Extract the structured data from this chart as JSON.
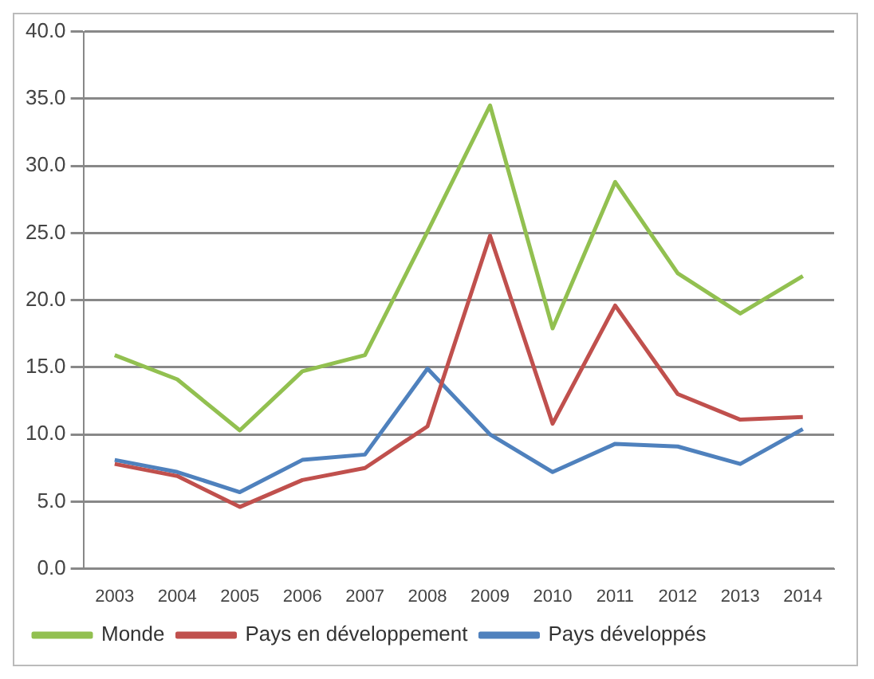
{
  "chart_data": {
    "type": "line",
    "categories": [
      "2003",
      "2004",
      "2005",
      "2006",
      "2007",
      "2008",
      "2009",
      "2010",
      "2011",
      "2012",
      "2013",
      "2014"
    ],
    "series": [
      {
        "name": "Monde",
        "color": "#92c050",
        "values": [
          15.9,
          14.1,
          10.3,
          14.7,
          15.9,
          25.1,
          34.5,
          17.9,
          28.8,
          22.0,
          19.0,
          21.8
        ]
      },
      {
        "name": "Pays en développement",
        "color": "#c0504d",
        "values": [
          7.8,
          6.9,
          4.6,
          6.6,
          7.5,
          10.6,
          24.8,
          10.8,
          19.6,
          13.0,
          11.1,
          11.3
        ]
      },
      {
        "name": "Pays développés",
        "color": "#4f81bd",
        "values": [
          8.1,
          7.2,
          5.7,
          8.1,
          8.5,
          14.9,
          10.0,
          7.2,
          9.3,
          9.1,
          7.8,
          10.4
        ]
      }
    ],
    "ylim": [
      0,
      40
    ],
    "yticks": [
      {
        "value": 0,
        "label": "0.0"
      },
      {
        "value": 5,
        "label": "5.0"
      },
      {
        "value": 10,
        "label": "10.0"
      },
      {
        "value": 15,
        "label": "15.0"
      },
      {
        "value": 20,
        "label": "20.0"
      },
      {
        "value": 25,
        "label": "25.0"
      },
      {
        "value": 30,
        "label": "30.0"
      },
      {
        "value": 35,
        "label": "35.0"
      },
      {
        "value": 40,
        "label": "40.0"
      }
    ],
    "grid": "y",
    "legend": "bottom",
    "marker": "none",
    "line_style": "solid"
  }
}
